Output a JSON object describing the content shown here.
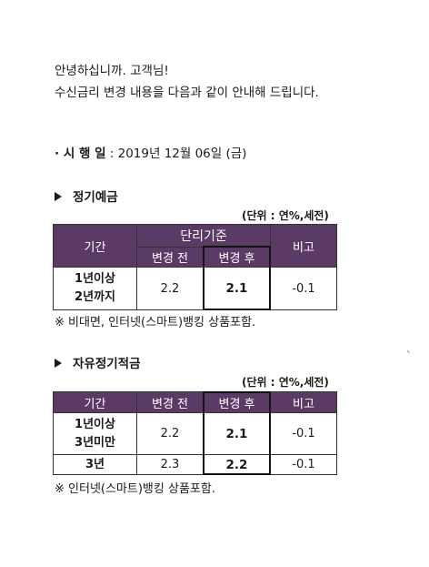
{
  "greeting": {
    "line1": "안녕하십니까. 고객님!",
    "line2": "수신금리 변경 내용을 다음과 같이 안내해 드립니다."
  },
  "effective": {
    "label": "· 시 행 일",
    "value": " : 2019년 12월 06일 (금)"
  },
  "section1": {
    "title": "정기예금",
    "unit": "(단위 : 연%,세전)",
    "headers": {
      "period": "기간",
      "group": "단리기준",
      "before": "변경 전",
      "after": "변경 후",
      "note": "비고"
    },
    "rows": [
      {
        "period_line1": "1년이상",
        "period_line2": "2년까지",
        "before": "2.2",
        "after": "2.1",
        "note": "-0.1"
      }
    ],
    "footnote": "※ 비대면, 인터넷(스마트)뱅킹 상품포함."
  },
  "section2": {
    "title": "자유정기적금",
    "unit": "(단위 : 연%,세전)",
    "headers": {
      "period": "기간",
      "before": "변경 전",
      "after": "변경 후",
      "note": "비고"
    },
    "rows": [
      {
        "period_line1": "1년이상",
        "period_line2": "3년미만",
        "before": "2.2",
        "after": "2.1",
        "note": "-0.1"
      },
      {
        "period": "3년",
        "before": "2.3",
        "after": "2.2",
        "note": "-0.1"
      }
    ],
    "footnote": "※ 인터넷(스마트)뱅킹 상품포함."
  },
  "stray_mark": "`"
}
